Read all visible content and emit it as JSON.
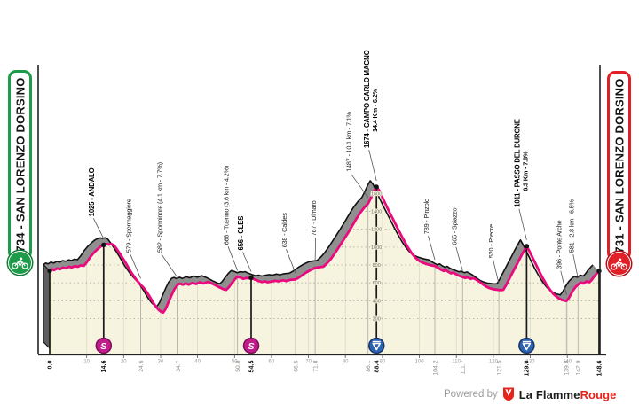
{
  "start_badge": {
    "label": "734 - SAN LORENZO DORSINO",
    "color": "#1d9b49"
  },
  "finish_badge": {
    "label": "731 - SAN LORENZO DORSINO",
    "color": "#e01f26"
  },
  "branding": {
    "powered_by": "Powered by",
    "brand_black": "La Flamme",
    "brand_red": "Rouge"
  },
  "chart_data": {
    "type": "area",
    "x_unit": "km",
    "y_unit": "m",
    "x_range": [
      0,
      148.6
    ],
    "y_gridlines": [
      200,
      400,
      600,
      800,
      1000,
      1200,
      1400,
      1600
    ],
    "x_ticks": [
      10,
      20,
      30,
      40,
      50,
      60,
      70,
      80,
      90,
      100,
      110,
      120,
      130,
      140
    ],
    "colors": {
      "profile": "#ea0a7e",
      "area": "#f6f4df",
      "band": "#8f8f8f",
      "band_dark": "#5f5f5f",
      "outline": "#111111",
      "sprint_marker": "#bf1d8a",
      "sprint_marker_rim": "#7c0f5a",
      "feed_marker": "#2d62ae",
      "feed_marker_rim": "#17356b",
      "grid": "#a8a593",
      "minor_line": "#b3b0a8"
    },
    "profile": [
      [
        0,
        734
      ],
      [
        0.6,
        752
      ],
      [
        1.2,
        742
      ],
      [
        2,
        762
      ],
      [
        2.8,
        752
      ],
      [
        3.6,
        772
      ],
      [
        4.4,
        762
      ],
      [
        5.2,
        780
      ],
      [
        6,
        772
      ],
      [
        6.8,
        788
      ],
      [
        7.6,
        780
      ],
      [
        8.4,
        796
      ],
      [
        9.2,
        790
      ],
      [
        10,
        830
      ],
      [
        11,
        890
      ],
      [
        12,
        940
      ],
      [
        13,
        980
      ],
      [
        13.8,
        1008
      ],
      [
        14.6,
        1025
      ],
      [
        15.4,
        1034
      ],
      [
        16,
        1028
      ],
      [
        16.6,
        1036
      ],
      [
        17.4,
        1020
      ],
      [
        18.2,
        975
      ],
      [
        19.4,
        900
      ],
      [
        20.6,
        820
      ],
      [
        22,
        720
      ],
      [
        23.4,
        635
      ],
      [
        24.6,
        579
      ],
      [
        25.4,
        545
      ],
      [
        26.2,
        500
      ],
      [
        27,
        448
      ],
      [
        27.8,
        392
      ],
      [
        28.6,
        340
      ],
      [
        29.4,
        300
      ],
      [
        30.2,
        274
      ],
      [
        30.7,
        268
      ],
      [
        31.4,
        310
      ],
      [
        32.2,
        390
      ],
      [
        33,
        465
      ],
      [
        33.8,
        535
      ],
      [
        34.7,
        582
      ],
      [
        35.3,
        590
      ],
      [
        36,
        578
      ],
      [
        36.8,
        592
      ],
      [
        37.6,
        580
      ],
      [
        38.6,
        598
      ],
      [
        39.6,
        586
      ],
      [
        40.6,
        606
      ],
      [
        41.6,
        592
      ],
      [
        42.8,
        610
      ],
      [
        44,
        590
      ],
      [
        45,
        570
      ],
      [
        46,
        548
      ],
      [
        47,
        528
      ],
      [
        47.7,
        520
      ],
      [
        48.4,
        548
      ],
      [
        49.2,
        592
      ],
      [
        50,
        636
      ],
      [
        50.8,
        668
      ],
      [
        51.6,
        658
      ],
      [
        52.4,
        644
      ],
      [
        53.2,
        654
      ],
      [
        54,
        650
      ],
      [
        54.5,
        656
      ],
      [
        55.4,
        638
      ],
      [
        56.4,
        622
      ],
      [
        57.4,
        608
      ],
      [
        58.2,
        616
      ],
      [
        59,
        606
      ],
      [
        60,
        614
      ],
      [
        61,
        622
      ],
      [
        62,
        616
      ],
      [
        63,
        628
      ],
      [
        64,
        620
      ],
      [
        65,
        632
      ],
      [
        66.5,
        638
      ],
      [
        67.3,
        656
      ],
      [
        68.2,
        682
      ],
      [
        69.2,
        712
      ],
      [
        70.4,
        740
      ],
      [
        71.8,
        767
      ],
      [
        72.8,
        774
      ],
      [
        74,
        781
      ],
      [
        75,
        818
      ],
      [
        76,
        866
      ],
      [
        77,
        922
      ],
      [
        78,
        986
      ],
      [
        79,
        1050
      ],
      [
        80,
        1114
      ],
      [
        81,
        1180
      ],
      [
        82,
        1250
      ],
      [
        83,
        1320
      ],
      [
        84,
        1385
      ],
      [
        85,
        1440
      ],
      [
        86.1,
        1487
      ],
      [
        86.9,
        1552
      ],
      [
        87.7,
        1625
      ],
      [
        88.4,
        1674
      ],
      [
        89.2,
        1630
      ],
      [
        90,
        1556
      ],
      [
        91,
        1468
      ],
      [
        92,
        1385
      ],
      [
        93,
        1302
      ],
      [
        94,
        1220
      ],
      [
        95,
        1140
      ],
      [
        96,
        1062
      ],
      [
        97,
        990
      ],
      [
        98,
        928
      ],
      [
        99,
        878
      ],
      [
        100,
        844
      ],
      [
        101,
        824
      ],
      [
        102,
        810
      ],
      [
        103,
        798
      ],
      [
        104.2,
        789
      ],
      [
        105,
        768
      ],
      [
        105.8,
        748
      ],
      [
        106.6,
        732
      ],
      [
        107.2,
        742
      ],
      [
        107.8,
        724
      ],
      [
        108.6,
        706
      ],
      [
        109.2,
        716
      ],
      [
        109.8,
        698
      ],
      [
        110.6,
        682
      ],
      [
        111.7,
        665
      ],
      [
        112.4,
        654
      ],
      [
        113,
        662
      ],
      [
        113.8,
        644
      ],
      [
        114.6,
        652
      ],
      [
        115.4,
        634
      ],
      [
        116.2,
        614
      ],
      [
        117,
        588
      ],
      [
        118,
        560
      ],
      [
        119,
        540
      ],
      [
        120,
        528
      ],
      [
        121.5,
        520
      ],
      [
        122.2,
        518
      ],
      [
        122.7,
        522
      ],
      [
        123.4,
        570
      ],
      [
        124.2,
        636
      ],
      [
        125,
        700
      ],
      [
        125.8,
        762
      ],
      [
        126.6,
        826
      ],
      [
        127.4,
        890
      ],
      [
        128.2,
        952
      ],
      [
        129,
        1011
      ],
      [
        129.8,
        952
      ],
      [
        130.6,
        884
      ],
      [
        131.4,
        816
      ],
      [
        132.2,
        748
      ],
      [
        133,
        682
      ],
      [
        133.8,
        622
      ],
      [
        134.6,
        566
      ],
      [
        135.4,
        518
      ],
      [
        136.2,
        478
      ],
      [
        137,
        448
      ],
      [
        137.8,
        424
      ],
      [
        138.6,
        408
      ],
      [
        139.8,
        396
      ],
      [
        140.4,
        428
      ],
      [
        141,
        472
      ],
      [
        141.6,
        516
      ],
      [
        142.2,
        550
      ],
      [
        142.9,
        581
      ],
      [
        143.6,
        602
      ],
      [
        144.4,
        592
      ],
      [
        145.2,
        616
      ],
      [
        146,
        606
      ],
      [
        146.6,
        632
      ],
      [
        147.2,
        668
      ],
      [
        148,
        706
      ],
      [
        148.6,
        731
      ]
    ],
    "locations": [
      {
        "km": 0.0,
        "elev": 734,
        "axis": "0.0",
        "major": true
      },
      {
        "km": 14.6,
        "elev": 1025,
        "axis": "14.6",
        "major": true,
        "marker": "sprint",
        "label": "1025 - ANDALO",
        "dx": -14,
        "leader": 23
      },
      {
        "km": 24.6,
        "elev": 579,
        "axis": "24.6",
        "label": "579 - Spormaggiore",
        "dx": -14,
        "leader": 27
      },
      {
        "km": 34.7,
        "elev": 582,
        "axis": "34.7",
        "label": "582 - Sporminore (4.1 km - 7.7%)",
        "dx": -21,
        "leader": 27
      },
      {
        "km": 50.8,
        "elev": 668,
        "axis": "50.8",
        "label": "668 - Tuenno (3.6 km - 4.2%)",
        "dx": -13,
        "leader": 27
      },
      {
        "km": 54.5,
        "elev": 656,
        "axis": "54.5",
        "major": true,
        "marker": "sprint",
        "label": "656 - CLES",
        "dx": -12,
        "leader": 22
      },
      {
        "km": 66.5,
        "elev": 638,
        "axis": "66.5",
        "label": "638 - Caldes",
        "dx": -13,
        "leader": 27
      },
      {
        "km": 71.8,
        "elev": 767,
        "axis": "71.8",
        "label": "767 - Dimaro",
        "dx": -2,
        "leader": 27
      },
      {
        "km": 86.1,
        "elev": 1487,
        "axis": "86.1",
        "label": "1487 - 10.1 km - 7.1%",
        "dx": -22,
        "leader": 27
      },
      {
        "km": 88.4,
        "elev": 1674,
        "axis": "88.4",
        "major": true,
        "marker": "feed",
        "label": "1674 - CAMPO CARLO MAGNO",
        "label2": "14.4 Km - 6.2%",
        "dx": -11,
        "leader": 35
      },
      {
        "km": 104.2,
        "elev": 789,
        "axis": "104.2",
        "label": "789 - Pinzolo",
        "dx": -10,
        "leader": 27
      },
      {
        "km": 111.7,
        "elev": 665,
        "axis": "111.7",
        "label": "665 - Spiazzo",
        "dx": -10,
        "leader": 27
      },
      {
        "km": 121.5,
        "elev": 520,
        "axis": "121.5",
        "label": "520 - Preore",
        "dx": -9,
        "leader": 27
      },
      {
        "km": 129.0,
        "elev": 1011,
        "axis": "129.0",
        "major": true,
        "marker": "feed",
        "label": "1011 - PASSO DEL DURONE",
        "label2": "6.3 Km - 7.8%",
        "dx": -11,
        "leader": 35
      },
      {
        "km": 139.8,
        "elev": 396,
        "axis": "139.8",
        "label": "396 - Ponte Arche",
        "dx": -9,
        "leader": 27
      },
      {
        "km": 142.9,
        "elev": 581,
        "axis": "142.9",
        "label": "581 - 2.8 km - 6.5%",
        "dx": -8,
        "leader": 27
      },
      {
        "km": 148.6,
        "elev": 731,
        "axis": "148.6",
        "major": true
      }
    ]
  }
}
